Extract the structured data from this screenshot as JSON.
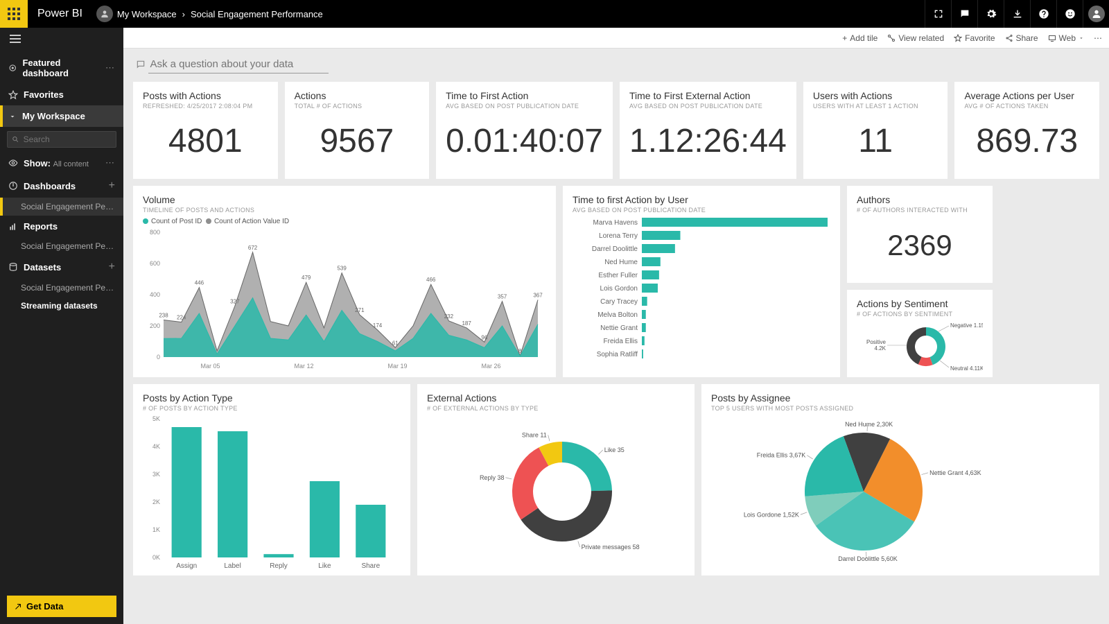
{
  "brand": "Power BI",
  "breadcrumb": {
    "workspace": "My Workspace",
    "page": "Social Engagement Performance"
  },
  "topIcons": [
    "expand",
    "chat",
    "gear",
    "download",
    "help",
    "smile",
    "avatar"
  ],
  "sidebar": {
    "featured": "Featured dashboard",
    "favorites": "Favorites",
    "workspace": "My Workspace",
    "searchPlaceholder": "Search",
    "showLabel": "Show:",
    "showValue": "All content",
    "dashboards": "Dashboards",
    "dashItem": "Social Engagement Perfo...",
    "reports": "Reports",
    "reportItem": "Social Engagement Perfo...",
    "datasets": "Datasets",
    "datasetItem": "Social Engagement Perfo...",
    "streaming": "Streaming datasets",
    "getData": "Get Data"
  },
  "toolbar": {
    "addTile": "Add tile",
    "viewRelated": "View related",
    "favorite": "Favorite",
    "share": "Share",
    "web": "Web"
  },
  "qnaPlaceholder": "Ask a question about your data",
  "kpis": [
    {
      "title": "Posts with Actions",
      "sub": "REFRESHED: 4/25/2017 2:08:04 PM",
      "value": "4801"
    },
    {
      "title": "Actions",
      "sub": "TOTAL # OF ACTIONS",
      "value": "9567"
    },
    {
      "title": "Time to First Action",
      "sub": "AVG BASED ON POST PUBLICATION DATE",
      "value": "0.01:40:07"
    },
    {
      "title": "Time to First External Action",
      "sub": "AVG BASED ON POST PUBLICATION DATE",
      "value": "1.12:26:44"
    },
    {
      "title": "Users with Actions",
      "sub": "USERS WITH AT LEAST 1 ACTION",
      "value": "11"
    },
    {
      "title": "Average Actions per User",
      "sub": "AVG # OF ACTIONS TAKEN",
      "value": "869.73"
    }
  ],
  "volume": {
    "title": "Volume",
    "sub": "TIMELINE OF POSTS AND ACTIONS",
    "legend1": "Count of Post ID",
    "legend2": "Count of Action Value ID",
    "yMax": 800,
    "yTicks": [
      0,
      200,
      400,
      600,
      800
    ],
    "xLabels": [
      "Mar 05",
      "Mar 12",
      "Mar 19",
      "Mar 26"
    ],
    "series1": [
      238,
      224,
      446,
      40,
      327,
      672,
      228,
      200,
      479,
      187,
      539,
      271,
      174,
      61,
      200,
      466,
      232,
      187,
      96,
      357,
      8,
      367
    ],
    "series2": [
      119,
      120,
      280,
      20,
      200,
      380,
      120,
      110,
      270,
      100,
      300,
      150,
      100,
      40,
      120,
      280,
      140,
      110,
      60,
      200,
      6,
      210
    ],
    "series1Labels": [
      238,
      224,
      446,
      null,
      327,
      672,
      null,
      null,
      479,
      null,
      539,
      271,
      174,
      61,
      null,
      466,
      232,
      187,
      96,
      357,
      8,
      367
    ],
    "color1": "#2ab9a9",
    "color2": "#8f8f8f"
  },
  "ttfaUser": {
    "title": "Time to first Action by User",
    "sub": "AVG BASED ON POST PUBLICATION DATE",
    "users": [
      "Marva Havens",
      "Lorena Terry",
      "Darrel Doolittle",
      "Ned Hume",
      "Esther Fuller",
      "Lois Gordon",
      "Cary Tracey",
      "Melva Bolton",
      "Nettie Grant",
      "Freida Ellis",
      "Sophia Ratliff"
    ],
    "values": [
      280,
      58,
      50,
      28,
      26,
      24,
      8,
      6,
      6,
      4,
      2
    ],
    "color": "#2ab9a9"
  },
  "authors": {
    "title": "Authors",
    "sub": "# OF AUTHORS INTERACTED WITH",
    "value": "2369"
  },
  "sentiment": {
    "title": "Actions by Sentiment",
    "sub": "# OF ACTIONS BY SENTIMENT",
    "slices": [
      {
        "label": "Positive 4.2K",
        "value": 4200,
        "color": "#2ab9a9"
      },
      {
        "label": "Negative 1.15K",
        "value": 1150,
        "color": "#ee5253"
      },
      {
        "label": "Neutral 4.11K",
        "value": 4110,
        "color": "#404040"
      }
    ]
  },
  "actionType": {
    "title": "Posts by Action Type",
    "sub": "# OF POSTS BY ACTION TYPE",
    "categories": [
      "Assign",
      "Label",
      "Reply",
      "Like",
      "Share"
    ],
    "values": [
      4700,
      4550,
      120,
      2750,
      1900
    ],
    "yMax": 5000,
    "yTicks": [
      "0K",
      "1K",
      "2K",
      "3K",
      "4K",
      "5K"
    ],
    "color": "#2ab9a9"
  },
  "external": {
    "title": "External Actions",
    "sub": "# OF EXTERNAL ACTIONS BY TYPE",
    "slices": [
      {
        "label": "Like 35",
        "value": 35,
        "color": "#2ab9a9"
      },
      {
        "label": "Private messages 58",
        "value": 58,
        "color": "#404040"
      },
      {
        "label": "Reply 38",
        "value": 38,
        "color": "#ee5253"
      },
      {
        "label": "Share 11",
        "value": 11,
        "color": "#f2c811"
      }
    ]
  },
  "assignee": {
    "title": "Posts by Assignee",
    "sub": "TOP 5 USERS WITH MOST POSTS ASSIGNED",
    "slices": [
      {
        "label": "Ned Hume 2,30K",
        "value": 2300,
        "color": "#404040"
      },
      {
        "label": "Nettie Grant 4,63K",
        "value": 4630,
        "color": "#f28e2b"
      },
      {
        "label": "Darrel Doolittle 5,60K",
        "value": 5600,
        "color": "#2ab9a9",
        "dark": true
      },
      {
        "label": "Lois Gordone 1,52K",
        "value": 1520,
        "color": "#7fcdbb"
      },
      {
        "label": "Freida Ellis 3,67K",
        "value": 3670,
        "color": "#2ab9a9"
      }
    ]
  }
}
